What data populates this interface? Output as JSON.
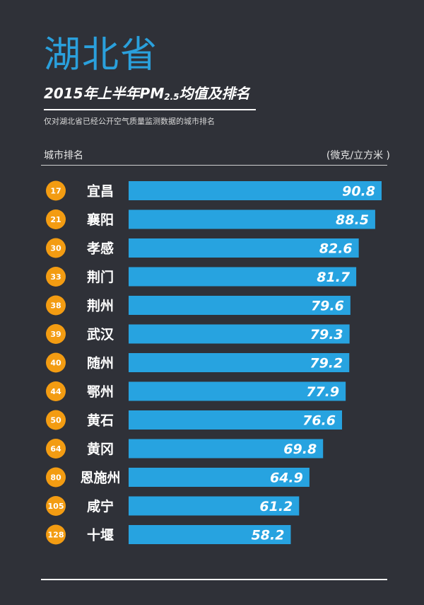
{
  "header": {
    "title": "湖北省",
    "subtitle_main": "2015年上半年PM",
    "subtitle_sub": "2.5",
    "subtitle_tail": "均值及排名",
    "description": "仅对湖北省已经公开空气质量监测数据的城市排名",
    "col_left": "城市排名",
    "col_right": "(微克/立方米 )"
  },
  "colors": {
    "background": "#2f3138",
    "bar": "#27a3e0",
    "rank_badge": "#f39c12",
    "title": "#2aa0dc"
  },
  "chart_data": {
    "type": "bar",
    "orientation": "horizontal",
    "title": "2015年上半年PM2.5均值及排名",
    "xlabel": "",
    "ylabel": "",
    "unit": "(微克/立方米 )",
    "xlim": [
      0,
      95
    ],
    "categories": [
      "宜昌",
      "襄阳",
      "孝感",
      "荆门",
      "荆州",
      "武汉",
      "随州",
      "鄂州",
      "黄石",
      "黄冈",
      "恩施州",
      "咸宁",
      "十堰"
    ],
    "ranks": [
      17,
      21,
      30,
      33,
      38,
      39,
      40,
      44,
      50,
      64,
      80,
      105,
      128
    ],
    "values": [
      90.8,
      88.5,
      82.6,
      81.7,
      79.6,
      79.3,
      79.2,
      77.9,
      76.6,
      69.8,
      64.9,
      61.2,
      58.2
    ]
  }
}
